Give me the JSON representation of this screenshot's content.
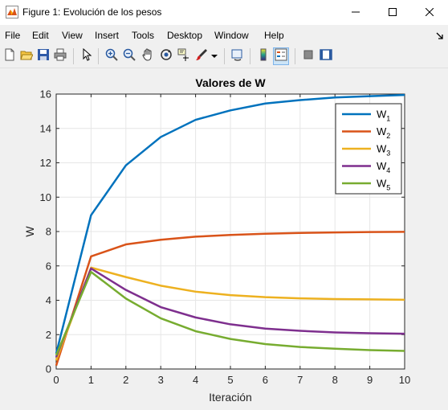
{
  "window": {
    "title": "Figure 1: Evolución de los pesos",
    "minimize": "minimize-icon",
    "maximize": "maximize-icon",
    "close": "close-icon"
  },
  "menu": {
    "items": [
      "File",
      "Edit",
      "View",
      "Insert",
      "Tools",
      "Desktop",
      "Window",
      "Help"
    ],
    "dock_arrow": "dock-arrow-icon"
  },
  "toolbar": {
    "buttons": [
      "new-figure-icon",
      "open-file-icon",
      "save-icon",
      "print-icon",
      "pointer-icon",
      "zoom-in-icon",
      "zoom-out-icon",
      "pan-icon",
      "rotate-3d-icon",
      "data-cursor-icon",
      "brush-icon",
      "brush-dropdown-icon",
      "link-plot-icon",
      "colorbar-icon",
      "legend-icon",
      "hide-plot-tools-icon",
      "show-plot-tools-icon"
    ]
  },
  "colors": {
    "w1": "#0072bd",
    "w2": "#d95319",
    "w3": "#edb120",
    "w4": "#7e2f8e",
    "w5": "#77ac30"
  },
  "chart_data": {
    "type": "line",
    "title": "Valores de W",
    "xlabel": "Iteración",
    "ylabel": "W",
    "xlim": [
      0,
      10
    ],
    "ylim": [
      0,
      16
    ],
    "xticks": [
      "0",
      "1",
      "2",
      "3",
      "4",
      "5",
      "6",
      "7",
      "8",
      "9",
      "10"
    ],
    "yticks": [
      "0",
      "2",
      "4",
      "6",
      "8",
      "10",
      "12",
      "14",
      "16"
    ],
    "grid": true,
    "legend_position": "top-right",
    "x": [
      0,
      1,
      2,
      3,
      4,
      5,
      6,
      7,
      8,
      9,
      10
    ],
    "series": [
      {
        "name": "W",
        "sub": "1",
        "values": [
          0.9,
          8.95,
          11.85,
          13.5,
          14.5,
          15.05,
          15.45,
          15.65,
          15.8,
          15.88,
          15.95
        ]
      },
      {
        "name": "W",
        "sub": "2",
        "values": [
          0.2,
          6.55,
          7.25,
          7.52,
          7.7,
          7.8,
          7.87,
          7.92,
          7.95,
          7.97,
          7.98
        ]
      },
      {
        "name": "W",
        "sub": "3",
        "values": [
          0.5,
          5.9,
          5.35,
          4.85,
          4.5,
          4.3,
          4.18,
          4.11,
          4.07,
          4.05,
          4.03
        ]
      },
      {
        "name": "W",
        "sub": "4",
        "values": [
          0.7,
          5.85,
          4.6,
          3.6,
          3.0,
          2.6,
          2.35,
          2.22,
          2.13,
          2.08,
          2.05
        ]
      },
      {
        "name": "W",
        "sub": "5",
        "values": [
          0.8,
          5.65,
          4.1,
          2.95,
          2.2,
          1.75,
          1.45,
          1.28,
          1.18,
          1.1,
          1.05
        ]
      }
    ]
  }
}
